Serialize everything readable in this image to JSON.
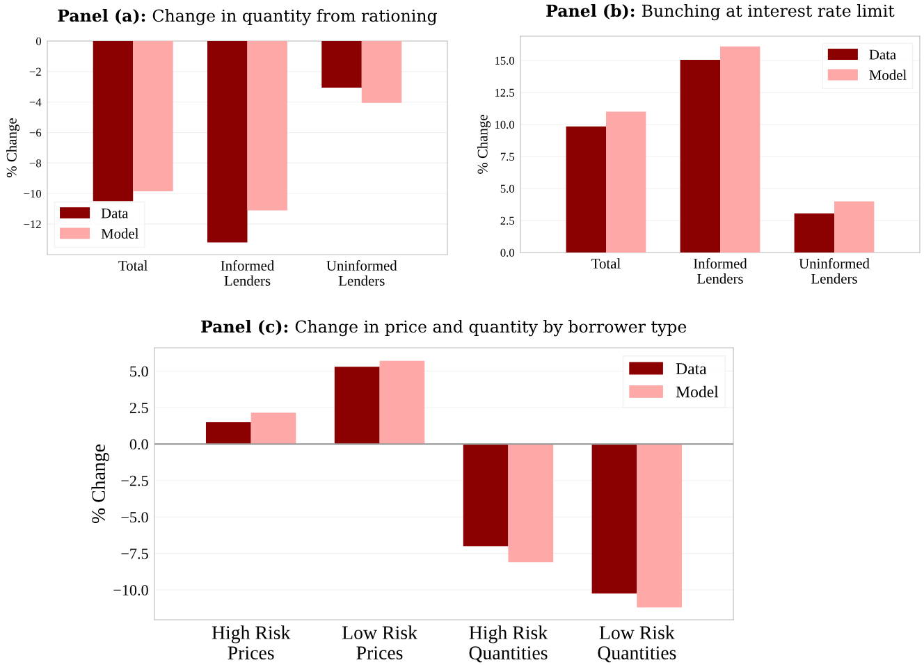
{
  "chart_data": [
    {
      "type": "bar",
      "title": "Panel (a): Change in quantity from rationing",
      "ylabel": "% Change",
      "categories": [
        "Total",
        "Informed\nLenders",
        "Uninformed\nLenders"
      ],
      "series": [
        {
          "name": "Data",
          "color": "#8b0000",
          "values": [
            -10.5,
            -13.2,
            -3.05
          ]
        },
        {
          "name": "Model",
          "color": "#ffa8a8",
          "values": [
            -9.85,
            -11.1,
            -4.05
          ]
        }
      ],
      "ylim": [
        -14.0,
        0
      ],
      "yticks": [
        0,
        -2,
        -4,
        -6,
        -8,
        -10,
        -12
      ],
      "grid": "y",
      "legend": "bottom left"
    },
    {
      "type": "bar",
      "title": "Panel (b): Bunching at interest rate limit",
      "ylabel": "% Change",
      "categories": [
        "Total",
        "Informed\nLenders",
        "Uninformed\nLenders"
      ],
      "series": [
        {
          "name": "Data",
          "color": "#8b0000",
          "values": [
            9.85,
            15.05,
            3.05
          ]
        },
        {
          "name": "Model",
          "color": "#ffa8a8",
          "values": [
            11.0,
            16.1,
            4.0
          ]
        }
      ],
      "ylim": [
        0,
        16.9
      ],
      "yticks": [
        {
          "value": 0,
          "label": "0.0"
        },
        2.5,
        {
          "value": 5,
          "label": "5.0"
        },
        7.5,
        {
          "value": 10,
          "label": "10.0"
        },
        12.5,
        {
          "value": 15,
          "label": "15.0"
        }
      ],
      "grid": "y",
      "legend": "top right"
    },
    {
      "type": "bar",
      "title": "Panel (c): Change in price and quantity by borrower type",
      "ylabel": "% Change",
      "categories": [
        "High Risk\nPrices",
        "Low Risk\nPrices",
        "High Risk\nQuantities",
        "Low Risk\nQuantities"
      ],
      "series": [
        {
          "name": "Data",
          "color": "#8b0000",
          "values": [
            1.5,
            5.3,
            -7.0,
            -10.25
          ]
        },
        {
          "name": "Model",
          "color": "#ffa8a8",
          "values": [
            2.15,
            5.7,
            -8.1,
            -11.2
          ]
        }
      ],
      "ylim": [
        -12.05,
        6.6
      ],
      "yticks": [
        {
          "value": 5,
          "label": "5.0"
        },
        2.5,
        {
          "value": 0,
          "label": "0.0"
        },
        {
          "value": -2.5,
          "label": "−2.5"
        },
        {
          "value": -5,
          "label": "−5.0"
        },
        {
          "value": -7.5,
          "label": "−7.5"
        },
        {
          "value": -10,
          "label": "−10.0"
        }
      ],
      "ref_lines": [
        {
          "axis": "y",
          "value": 0,
          "color": "#999999"
        }
      ],
      "grid": "y",
      "legend": "top right"
    }
  ]
}
